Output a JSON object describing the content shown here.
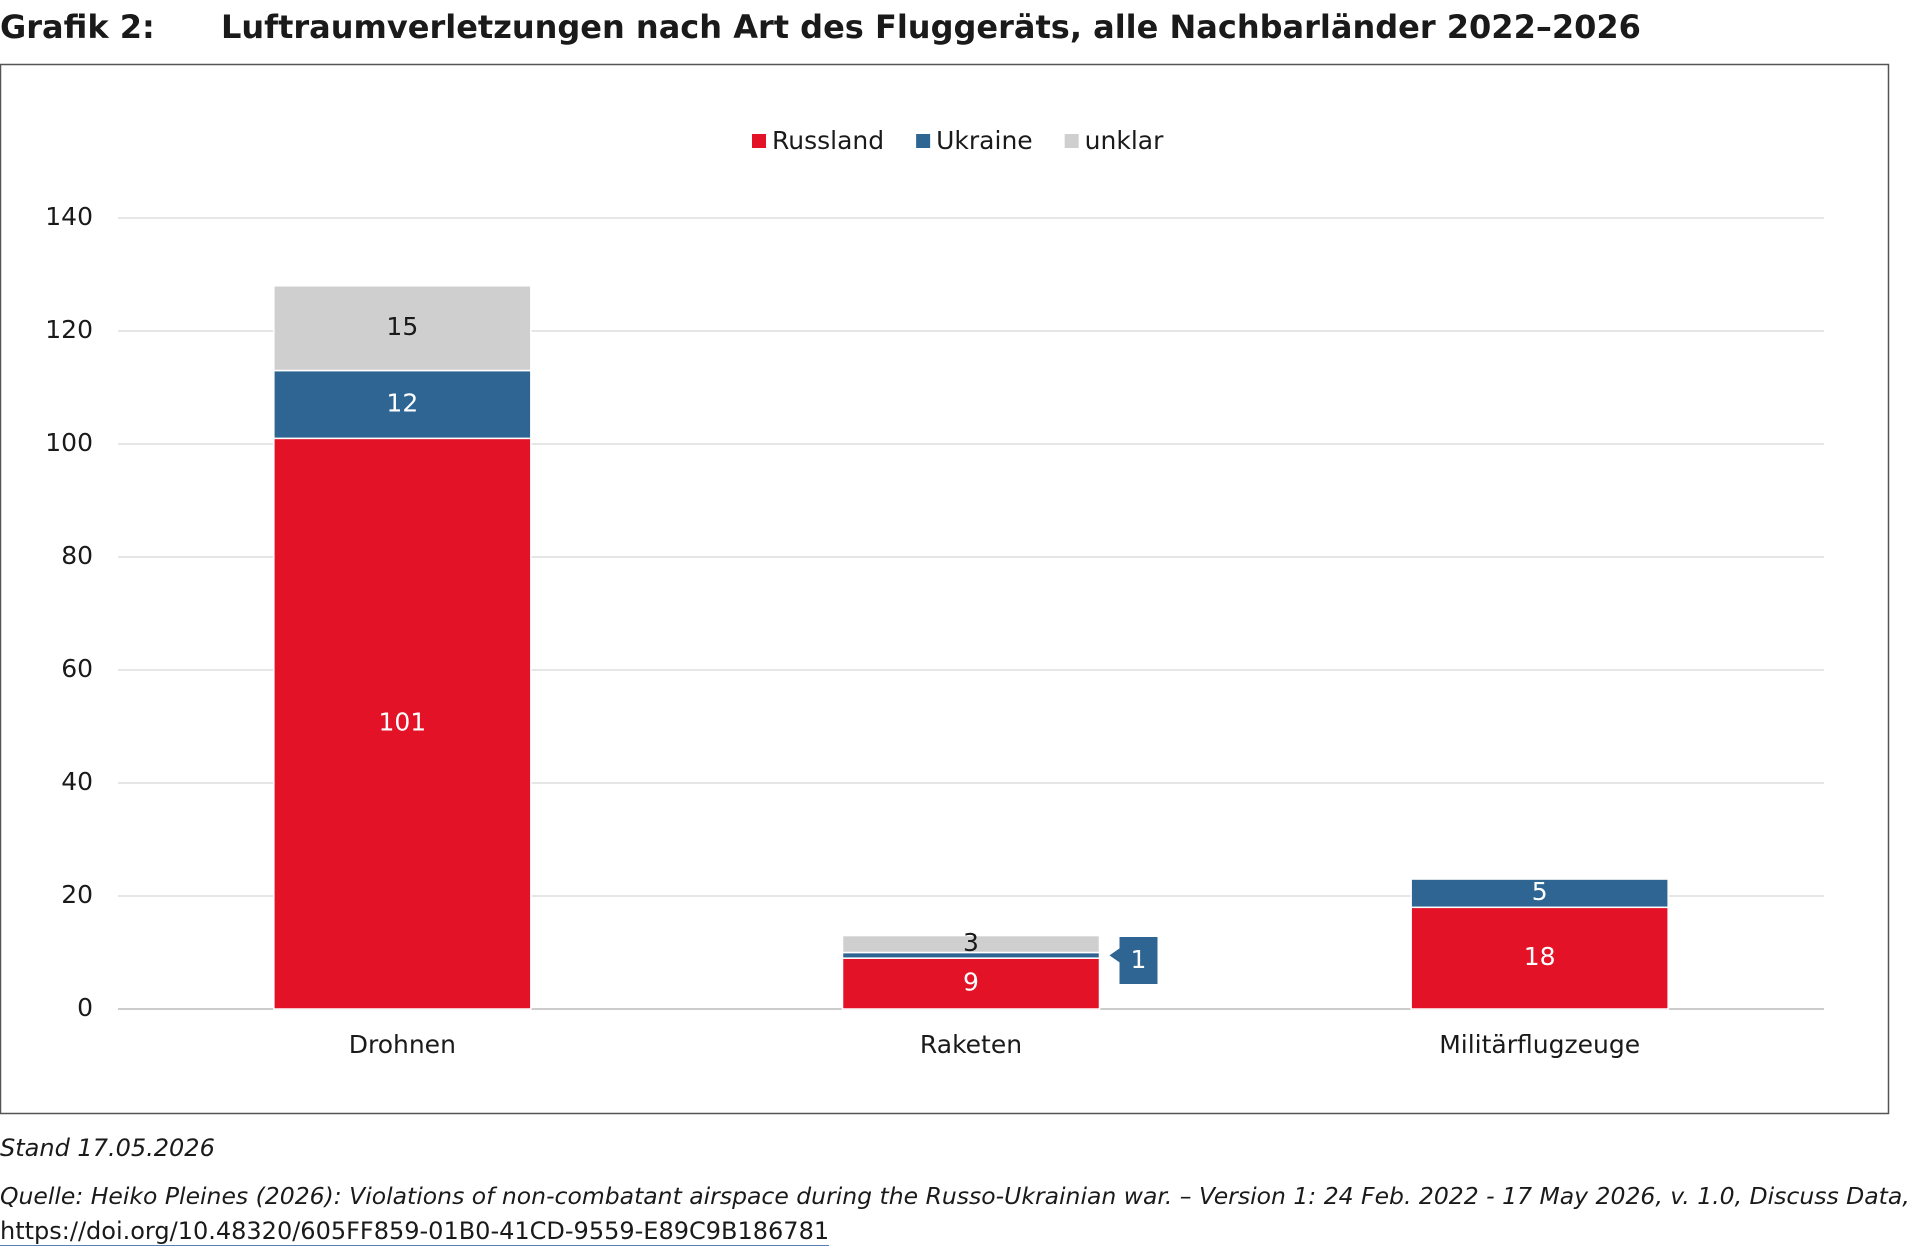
{
  "header": {
    "label": "Grafik 2:",
    "title": "Luftraumverletzungen nach Art des Fluggeräts, alle Nachbarländer 2022–2026"
  },
  "chart_data": {
    "type": "stacked-bar",
    "categories": [
      "Drohnen",
      "Raketen",
      "Militärflugzeuge"
    ],
    "series": [
      {
        "name": "Russland",
        "color": "#e31226",
        "values": [
          101,
          9,
          18
        ]
      },
      {
        "name": "Ukraine",
        "color": "#2f6592",
        "values": [
          12,
          1,
          5
        ]
      },
      {
        "name": "unklar",
        "color": "#d0cfd0",
        "values": [
          15,
          3,
          null
        ]
      }
    ],
    "ylim": [
      0,
      140
    ],
    "yticks": [
      0,
      20,
      40,
      60,
      80,
      100,
      120,
      140
    ],
    "grid": true,
    "legend": "top"
  },
  "footer": {
    "stand": "Stand 17.05.2026",
    "source": "Quelle: Heiko Pleines (2026): Violations of non-combatant airspace during the Russo-Ukrainian war. – Version 1: 24 Feb. 2022 - 17 May 2026, v. 1.0, Discuss Data,",
    "link": "https://doi.org/10.48320/605FF859-01B0-41CD-9559-E89C9B186781"
  }
}
